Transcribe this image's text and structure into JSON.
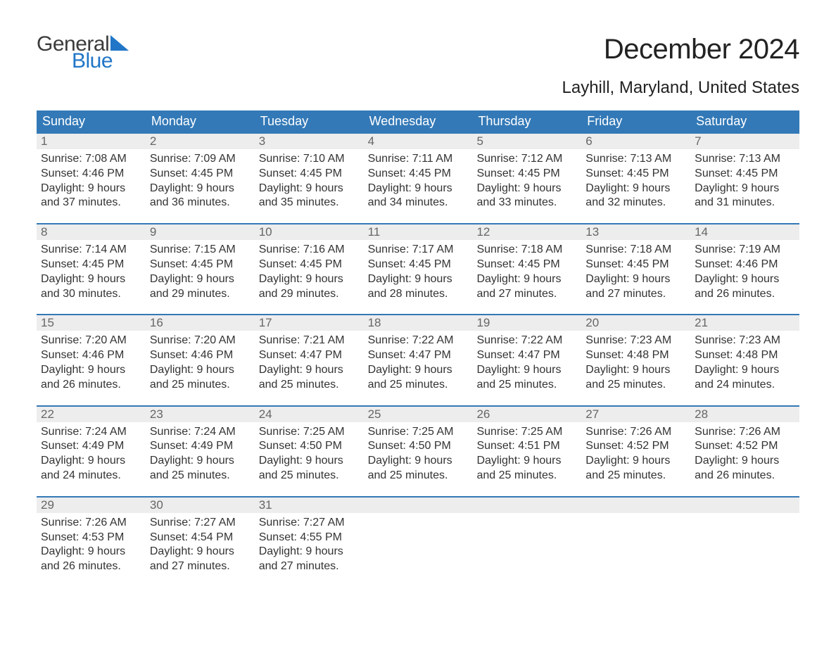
{
  "logo": {
    "text_general": "General",
    "text_blue": "Blue",
    "sail_color": "#2176c7"
  },
  "title": "December 2024",
  "location": "Layhill, Maryland, United States",
  "colors": {
    "header_bg": "#3379b7",
    "header_text": "#ffffff",
    "daynum_bg": "#ededed",
    "daynum_text": "#666666",
    "body_text": "#333333",
    "week_border": "#3379b7",
    "page_bg": "#ffffff"
  },
  "typography": {
    "title_fontsize": 40,
    "location_fontsize": 24,
    "dow_fontsize": 18,
    "daynum_fontsize": 17,
    "body_fontsize": 16
  },
  "days_of_week": [
    "Sunday",
    "Monday",
    "Tuesday",
    "Wednesday",
    "Thursday",
    "Friday",
    "Saturday"
  ],
  "weeks": [
    [
      {
        "n": "1",
        "sunrise": "Sunrise: 7:08 AM",
        "sunset": "Sunset: 4:46 PM",
        "dl1": "Daylight: 9 hours",
        "dl2": "and 37 minutes."
      },
      {
        "n": "2",
        "sunrise": "Sunrise: 7:09 AM",
        "sunset": "Sunset: 4:45 PM",
        "dl1": "Daylight: 9 hours",
        "dl2": "and 36 minutes."
      },
      {
        "n": "3",
        "sunrise": "Sunrise: 7:10 AM",
        "sunset": "Sunset: 4:45 PM",
        "dl1": "Daylight: 9 hours",
        "dl2": "and 35 minutes."
      },
      {
        "n": "4",
        "sunrise": "Sunrise: 7:11 AM",
        "sunset": "Sunset: 4:45 PM",
        "dl1": "Daylight: 9 hours",
        "dl2": "and 34 minutes."
      },
      {
        "n": "5",
        "sunrise": "Sunrise: 7:12 AM",
        "sunset": "Sunset: 4:45 PM",
        "dl1": "Daylight: 9 hours",
        "dl2": "and 33 minutes."
      },
      {
        "n": "6",
        "sunrise": "Sunrise: 7:13 AM",
        "sunset": "Sunset: 4:45 PM",
        "dl1": "Daylight: 9 hours",
        "dl2": "and 32 minutes."
      },
      {
        "n": "7",
        "sunrise": "Sunrise: 7:13 AM",
        "sunset": "Sunset: 4:45 PM",
        "dl1": "Daylight: 9 hours",
        "dl2": "and 31 minutes."
      }
    ],
    [
      {
        "n": "8",
        "sunrise": "Sunrise: 7:14 AM",
        "sunset": "Sunset: 4:45 PM",
        "dl1": "Daylight: 9 hours",
        "dl2": "and 30 minutes."
      },
      {
        "n": "9",
        "sunrise": "Sunrise: 7:15 AM",
        "sunset": "Sunset: 4:45 PM",
        "dl1": "Daylight: 9 hours",
        "dl2": "and 29 minutes."
      },
      {
        "n": "10",
        "sunrise": "Sunrise: 7:16 AM",
        "sunset": "Sunset: 4:45 PM",
        "dl1": "Daylight: 9 hours",
        "dl2": "and 29 minutes."
      },
      {
        "n": "11",
        "sunrise": "Sunrise: 7:17 AM",
        "sunset": "Sunset: 4:45 PM",
        "dl1": "Daylight: 9 hours",
        "dl2": "and 28 minutes."
      },
      {
        "n": "12",
        "sunrise": "Sunrise: 7:18 AM",
        "sunset": "Sunset: 4:45 PM",
        "dl1": "Daylight: 9 hours",
        "dl2": "and 27 minutes."
      },
      {
        "n": "13",
        "sunrise": "Sunrise: 7:18 AM",
        "sunset": "Sunset: 4:45 PM",
        "dl1": "Daylight: 9 hours",
        "dl2": "and 27 minutes."
      },
      {
        "n": "14",
        "sunrise": "Sunrise: 7:19 AM",
        "sunset": "Sunset: 4:46 PM",
        "dl1": "Daylight: 9 hours",
        "dl2": "and 26 minutes."
      }
    ],
    [
      {
        "n": "15",
        "sunrise": "Sunrise: 7:20 AM",
        "sunset": "Sunset: 4:46 PM",
        "dl1": "Daylight: 9 hours",
        "dl2": "and 26 minutes."
      },
      {
        "n": "16",
        "sunrise": "Sunrise: 7:20 AM",
        "sunset": "Sunset: 4:46 PM",
        "dl1": "Daylight: 9 hours",
        "dl2": "and 25 minutes."
      },
      {
        "n": "17",
        "sunrise": "Sunrise: 7:21 AM",
        "sunset": "Sunset: 4:47 PM",
        "dl1": "Daylight: 9 hours",
        "dl2": "and 25 minutes."
      },
      {
        "n": "18",
        "sunrise": "Sunrise: 7:22 AM",
        "sunset": "Sunset: 4:47 PM",
        "dl1": "Daylight: 9 hours",
        "dl2": "and 25 minutes."
      },
      {
        "n": "19",
        "sunrise": "Sunrise: 7:22 AM",
        "sunset": "Sunset: 4:47 PM",
        "dl1": "Daylight: 9 hours",
        "dl2": "and 25 minutes."
      },
      {
        "n": "20",
        "sunrise": "Sunrise: 7:23 AM",
        "sunset": "Sunset: 4:48 PM",
        "dl1": "Daylight: 9 hours",
        "dl2": "and 25 minutes."
      },
      {
        "n": "21",
        "sunrise": "Sunrise: 7:23 AM",
        "sunset": "Sunset: 4:48 PM",
        "dl1": "Daylight: 9 hours",
        "dl2": "and 24 minutes."
      }
    ],
    [
      {
        "n": "22",
        "sunrise": "Sunrise: 7:24 AM",
        "sunset": "Sunset: 4:49 PM",
        "dl1": "Daylight: 9 hours",
        "dl2": "and 24 minutes."
      },
      {
        "n": "23",
        "sunrise": "Sunrise: 7:24 AM",
        "sunset": "Sunset: 4:49 PM",
        "dl1": "Daylight: 9 hours",
        "dl2": "and 25 minutes."
      },
      {
        "n": "24",
        "sunrise": "Sunrise: 7:25 AM",
        "sunset": "Sunset: 4:50 PM",
        "dl1": "Daylight: 9 hours",
        "dl2": "and 25 minutes."
      },
      {
        "n": "25",
        "sunrise": "Sunrise: 7:25 AM",
        "sunset": "Sunset: 4:50 PM",
        "dl1": "Daylight: 9 hours",
        "dl2": "and 25 minutes."
      },
      {
        "n": "26",
        "sunrise": "Sunrise: 7:25 AM",
        "sunset": "Sunset: 4:51 PM",
        "dl1": "Daylight: 9 hours",
        "dl2": "and 25 minutes."
      },
      {
        "n": "27",
        "sunrise": "Sunrise: 7:26 AM",
        "sunset": "Sunset: 4:52 PM",
        "dl1": "Daylight: 9 hours",
        "dl2": "and 25 minutes."
      },
      {
        "n": "28",
        "sunrise": "Sunrise: 7:26 AM",
        "sunset": "Sunset: 4:52 PM",
        "dl1": "Daylight: 9 hours",
        "dl2": "and 26 minutes."
      }
    ],
    [
      {
        "n": "29",
        "sunrise": "Sunrise: 7:26 AM",
        "sunset": "Sunset: 4:53 PM",
        "dl1": "Daylight: 9 hours",
        "dl2": "and 26 minutes."
      },
      {
        "n": "30",
        "sunrise": "Sunrise: 7:27 AM",
        "sunset": "Sunset: 4:54 PM",
        "dl1": "Daylight: 9 hours",
        "dl2": "and 27 minutes."
      },
      {
        "n": "31",
        "sunrise": "Sunrise: 7:27 AM",
        "sunset": "Sunset: 4:55 PM",
        "dl1": "Daylight: 9 hours",
        "dl2": "and 27 minutes."
      },
      {
        "empty": true
      },
      {
        "empty": true
      },
      {
        "empty": true
      },
      {
        "empty": true
      }
    ]
  ]
}
